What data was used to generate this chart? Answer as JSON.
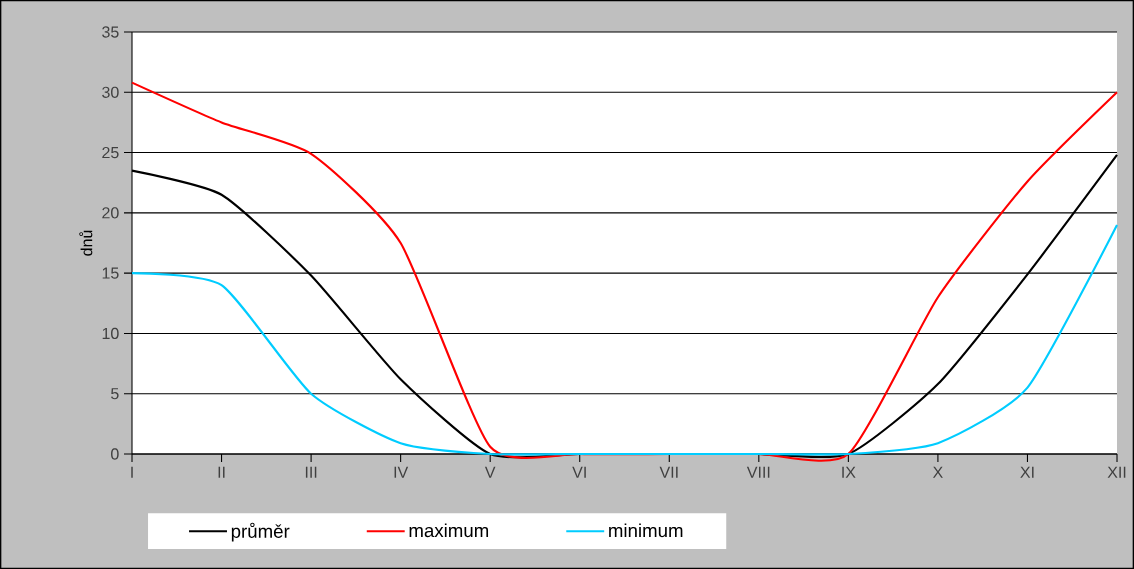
{
  "chart_data": {
    "type": "line",
    "ylabel": "dnů",
    "categories": [
      "I",
      "II",
      "III",
      "IV",
      "V",
      "VI",
      "VII",
      "VIII",
      "IX",
      "X",
      "XI",
      "XII"
    ],
    "series": [
      {
        "name": "průměr",
        "color": "#000000",
        "values": [
          23.5,
          21.5,
          14.8,
          6.2,
          0,
          0,
          0,
          0,
          0,
          5.8,
          14.9,
          24.8
        ]
      },
      {
        "name": "maximum",
        "color": "#ff0000",
        "values": [
          30.8,
          27.5,
          24.9,
          17.5,
          0.6,
          0,
          0,
          0,
          0,
          13,
          22.6,
          30
        ]
      },
      {
        "name": "minimum",
        "color": "#00ccff",
        "values": [
          15,
          14,
          5,
          0.9,
          0,
          0,
          0,
          0,
          0,
          0.9,
          5.5,
          19
        ]
      }
    ],
    "ylim": [
      0,
      35
    ],
    "yticks": [
      0,
      5,
      10,
      15,
      20,
      25,
      30,
      35
    ],
    "grid": "y",
    "legend": "bottom",
    "line_style": "solid"
  }
}
